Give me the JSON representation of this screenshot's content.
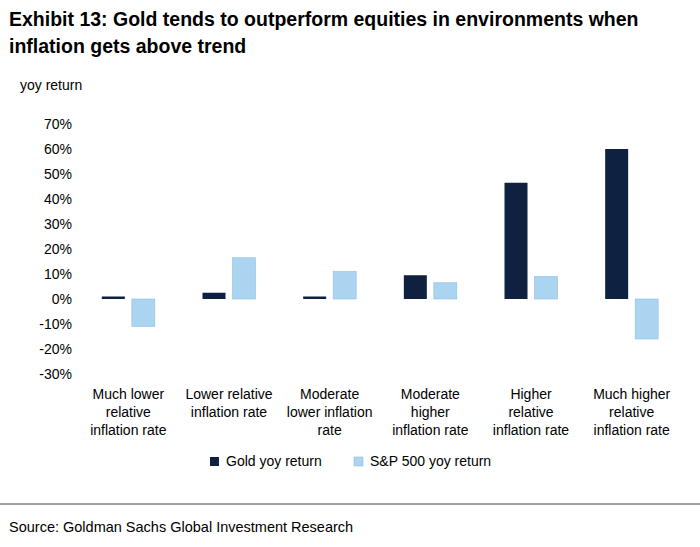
{
  "chart_data": {
    "type": "bar",
    "title": "Exhibit 13: Gold tends to outperform equities in environments when\ninflation gets above trend",
    "y_label": "yoy return",
    "categories": [
      "Much lower\nrelative\ninflation rate",
      "Lower relative\ninflation rate",
      "Moderate\nlower inflation\nrate",
      "Moderate\nhigher\ninflation rate",
      "Higher\nrelative\ninflation rate",
      "Much higher\nrelative\ninflation rate"
    ],
    "series": [
      {
        "name": "Gold yoy return",
        "color": "#0f2140",
        "values": [
          1,
          2.5,
          1,
          9.5,
          46.5,
          60
        ]
      },
      {
        "name": "S&P 500 yoy return",
        "color": "#aad4f0",
        "values": [
          -11,
          16.5,
          11,
          6.5,
          9,
          -16
        ]
      }
    ],
    "ylim": [
      -30,
      70
    ],
    "yticks": [
      {
        "value": -30,
        "label": "-30%"
      },
      {
        "value": -20,
        "label": "-20%"
      },
      {
        "value": -10,
        "label": "-10%"
      },
      {
        "value": 0,
        "label": "0%"
      },
      {
        "value": 10,
        "label": "10%"
      },
      {
        "value": 20,
        "label": "20%"
      },
      {
        "value": 30,
        "label": "30%"
      },
      {
        "value": 40,
        "label": "40%"
      },
      {
        "value": 50,
        "label": "50%"
      },
      {
        "value": 60,
        "label": "60%"
      },
      {
        "value": 70,
        "label": "70%"
      }
    ],
    "grid": false,
    "legend": "bottom",
    "source": "Source: Goldman Sachs Global Investment Research"
  }
}
